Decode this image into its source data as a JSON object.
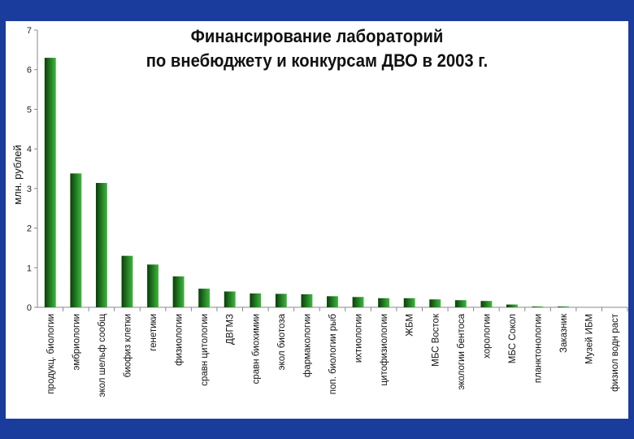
{
  "chart_data": {
    "type": "bar",
    "title_lines": [
      "Финансирование лабораторий",
      "по внебюджету и конкурсам ДВО в 2003 г."
    ],
    "ylabel": "млн. рублей",
    "ylim": [
      0,
      7
    ],
    "yticks": [
      0,
      1,
      2,
      3,
      4,
      5,
      6,
      7
    ],
    "categories": [
      "продукц. биологии",
      "эмбриологии",
      "экол шельф сообщ",
      "биофиз клетки",
      "генетики",
      "физиологии",
      "сравн цитологии",
      "ДВГМЗ",
      "сравн биохимии",
      "экол биотоза",
      "фармакологии",
      "поп. биологии рыб",
      "ихтиологии",
      "цитофизиологии",
      "ЖБМ",
      "МБС Восток",
      "экологии бентоса",
      "хорологии",
      "МБС Сокол",
      "планктонологии",
      "Заказник",
      "Музей ИБМ",
      "физиол водн раст"
    ],
    "values": [
      6.3,
      3.38,
      3.14,
      1.3,
      1.08,
      0.78,
      0.47,
      0.4,
      0.35,
      0.34,
      0.33,
      0.28,
      0.26,
      0.23,
      0.23,
      0.2,
      0.18,
      0.16,
      0.07,
      0.02,
      0.02,
      0.0,
      0.0
    ],
    "colors": {
      "bar_dark": "#0b3d0b",
      "bar_light": "#3db83d",
      "background": "#ffffff",
      "frame": "#1a3c9c"
    }
  }
}
